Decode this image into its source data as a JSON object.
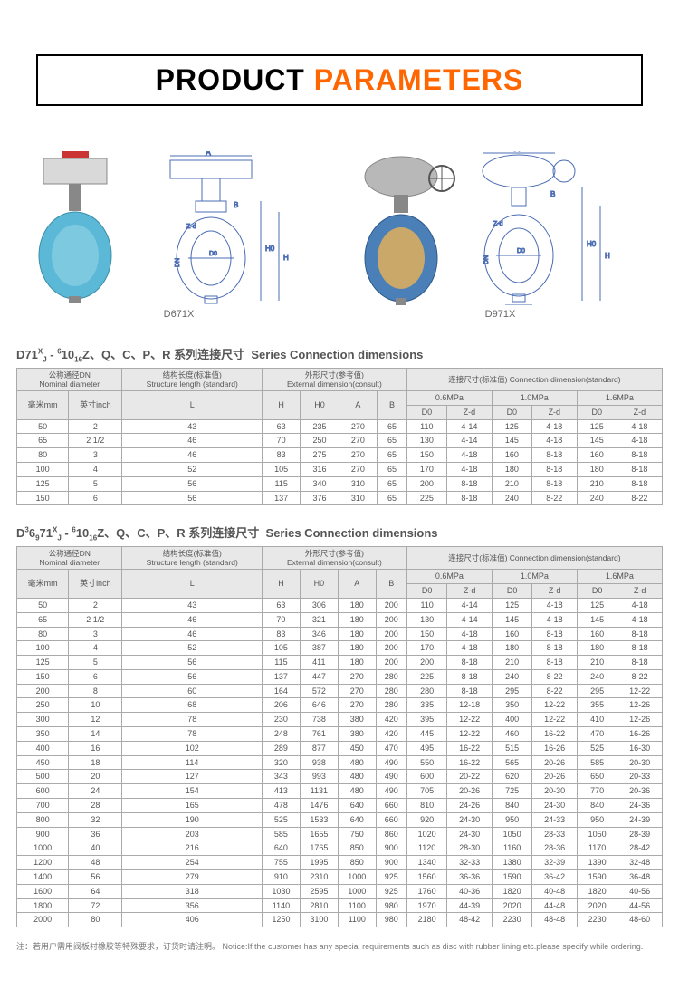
{
  "header": {
    "word1": "PRODUCT",
    "word2": "PARAMETERS",
    "color1": "#000000",
    "color2": "#ff6600",
    "border_color": "#000000"
  },
  "diagrams": {
    "label_left": "D671X",
    "label_right": "D971X",
    "dim_labels": [
      "A",
      "B",
      "Z-d",
      "H0",
      "H",
      "L",
      "DN",
      "D0"
    ]
  },
  "section1": {
    "title_cn": "D71 X/J - 6/10/16 Z、Q、C、P、R 系列连接尺寸",
    "title_en": "Series Connection dimensions",
    "model_prefix": "D71",
    "model_sup": "X",
    "model_sub": "J",
    "model_frac": "6\n10\n16"
  },
  "section2": {
    "title_cn": "D 3/6/9 71 X/J - 6/10/16 Z、Q、C、P、R 系列连接尺寸",
    "title_en": "Series Connection dimensions"
  },
  "table_headers": {
    "dn_cn": "公称通径DN",
    "dn_en": "Nominal diameter",
    "len_cn": "结构长度(标准值)",
    "len_en": "Structure length (standard)",
    "ext_cn": "外形尺寸(参考值)",
    "ext_en": "External dimension(consult)",
    "conn_cn": "连接尺寸(标准值)",
    "conn_en": "Connection dimension(standard)",
    "mm": "毫米mm",
    "inch": "英寸inch",
    "L": "L",
    "H": "H",
    "H0": "H0",
    "A": "A",
    "B": "B",
    "D0": "D0",
    "Zd": "Z-d",
    "p06": "0.6MPa",
    "p10": "1.0MPa",
    "p16": "1.6MPa"
  },
  "table1": {
    "rows": [
      [
        "50",
        "2",
        "43",
        "63",
        "235",
        "270",
        "65",
        "110",
        "4-14",
        "125",
        "4-18",
        "125",
        "4-18"
      ],
      [
        "65",
        "2 1/2",
        "46",
        "70",
        "250",
        "270",
        "65",
        "130",
        "4-14",
        "145",
        "4-18",
        "145",
        "4-18"
      ],
      [
        "80",
        "3",
        "46",
        "83",
        "275",
        "270",
        "65",
        "150",
        "4-18",
        "160",
        "8-18",
        "160",
        "8-18"
      ],
      [
        "100",
        "4",
        "52",
        "105",
        "316",
        "270",
        "65",
        "170",
        "4-18",
        "180",
        "8-18",
        "180",
        "8-18"
      ],
      [
        "125",
        "5",
        "56",
        "115",
        "340",
        "310",
        "65",
        "200",
        "8-18",
        "210",
        "8-18",
        "210",
        "8-18"
      ],
      [
        "150",
        "6",
        "56",
        "137",
        "376",
        "310",
        "65",
        "225",
        "8-18",
        "240",
        "8-22",
        "240",
        "8-22"
      ]
    ]
  },
  "table2": {
    "rows": [
      [
        "50",
        "2",
        "43",
        "63",
        "306",
        "180",
        "200",
        "110",
        "4-14",
        "125",
        "4-18",
        "125",
        "4-18"
      ],
      [
        "65",
        "2 1/2",
        "46",
        "70",
        "321",
        "180",
        "200",
        "130",
        "4-14",
        "145",
        "4-18",
        "145",
        "4-18"
      ],
      [
        "80",
        "3",
        "46",
        "83",
        "346",
        "180",
        "200",
        "150",
        "4-18",
        "160",
        "8-18",
        "160",
        "8-18"
      ],
      [
        "100",
        "4",
        "52",
        "105",
        "387",
        "180",
        "200",
        "170",
        "4-18",
        "180",
        "8-18",
        "180",
        "8-18"
      ],
      [
        "125",
        "5",
        "56",
        "115",
        "411",
        "180",
        "200",
        "200",
        "8-18",
        "210",
        "8-18",
        "210",
        "8-18"
      ],
      [
        "150",
        "6",
        "56",
        "137",
        "447",
        "270",
        "280",
        "225",
        "8-18",
        "240",
        "8-22",
        "240",
        "8-22"
      ],
      [
        "200",
        "8",
        "60",
        "164",
        "572",
        "270",
        "280",
        "280",
        "8-18",
        "295",
        "8-22",
        "295",
        "12-22"
      ],
      [
        "250",
        "10",
        "68",
        "206",
        "646",
        "270",
        "280",
        "335",
        "12-18",
        "350",
        "12-22",
        "355",
        "12-26"
      ],
      [
        "300",
        "12",
        "78",
        "230",
        "738",
        "380",
        "420",
        "395",
        "12-22",
        "400",
        "12-22",
        "410",
        "12-26"
      ],
      [
        "350",
        "14",
        "78",
        "248",
        "761",
        "380",
        "420",
        "445",
        "12-22",
        "460",
        "16-22",
        "470",
        "16-26"
      ],
      [
        "400",
        "16",
        "102",
        "289",
        "877",
        "450",
        "470",
        "495",
        "16-22",
        "515",
        "16-26",
        "525",
        "16-30"
      ],
      [
        "450",
        "18",
        "114",
        "320",
        "938",
        "480",
        "490",
        "550",
        "16-22",
        "565",
        "20-26",
        "585",
        "20-30"
      ],
      [
        "500",
        "20",
        "127",
        "343",
        "993",
        "480",
        "490",
        "600",
        "20-22",
        "620",
        "20-26",
        "650",
        "20-33"
      ],
      [
        "600",
        "24",
        "154",
        "413",
        "1131",
        "480",
        "490",
        "705",
        "20-26",
        "725",
        "20-30",
        "770",
        "20-36"
      ],
      [
        "700",
        "28",
        "165",
        "478",
        "1476",
        "640",
        "660",
        "810",
        "24-26",
        "840",
        "24-30",
        "840",
        "24-36"
      ],
      [
        "800",
        "32",
        "190",
        "525",
        "1533",
        "640",
        "660",
        "920",
        "24-30",
        "950",
        "24-33",
        "950",
        "24-39"
      ],
      [
        "900",
        "36",
        "203",
        "585",
        "1655",
        "750",
        "860",
        "1020",
        "24-30",
        "1050",
        "28-33",
        "1050",
        "28-39"
      ],
      [
        "1000",
        "40",
        "216",
        "640",
        "1765",
        "850",
        "900",
        "1120",
        "28-30",
        "1160",
        "28-36",
        "1170",
        "28-42"
      ],
      [
        "1200",
        "48",
        "254",
        "755",
        "1995",
        "850",
        "900",
        "1340",
        "32-33",
        "1380",
        "32-39",
        "1390",
        "32-48"
      ],
      [
        "1400",
        "56",
        "279",
        "910",
        "2310",
        "1000",
        "925",
        "1560",
        "36-36",
        "1590",
        "36-42",
        "1590",
        "36-48"
      ],
      [
        "1600",
        "64",
        "318",
        "1030",
        "2595",
        "1000",
        "925",
        "1760",
        "40-36",
        "1820",
        "40-48",
        "1820",
        "40-56"
      ],
      [
        "1800",
        "72",
        "356",
        "1140",
        "2810",
        "1100",
        "980",
        "1970",
        "44-39",
        "2020",
        "44-48",
        "2020",
        "44-56"
      ],
      [
        "2000",
        "80",
        "406",
        "1250",
        "3100",
        "1100",
        "980",
        "2180",
        "48-42",
        "2230",
        "48-48",
        "2230",
        "48-60"
      ]
    ]
  },
  "notice": {
    "cn": "注：若用户需用阀板衬橡胶等特殊要求，订货时请注明。",
    "en": "Notice:If the customer has any special requirements such as disc with rubber lining etc.please specify while ordering."
  },
  "style": {
    "table_border": "#aaaaaa",
    "th_bg": "#e8e8e8",
    "font_color": "#555555",
    "body_bg": "#ffffff"
  }
}
